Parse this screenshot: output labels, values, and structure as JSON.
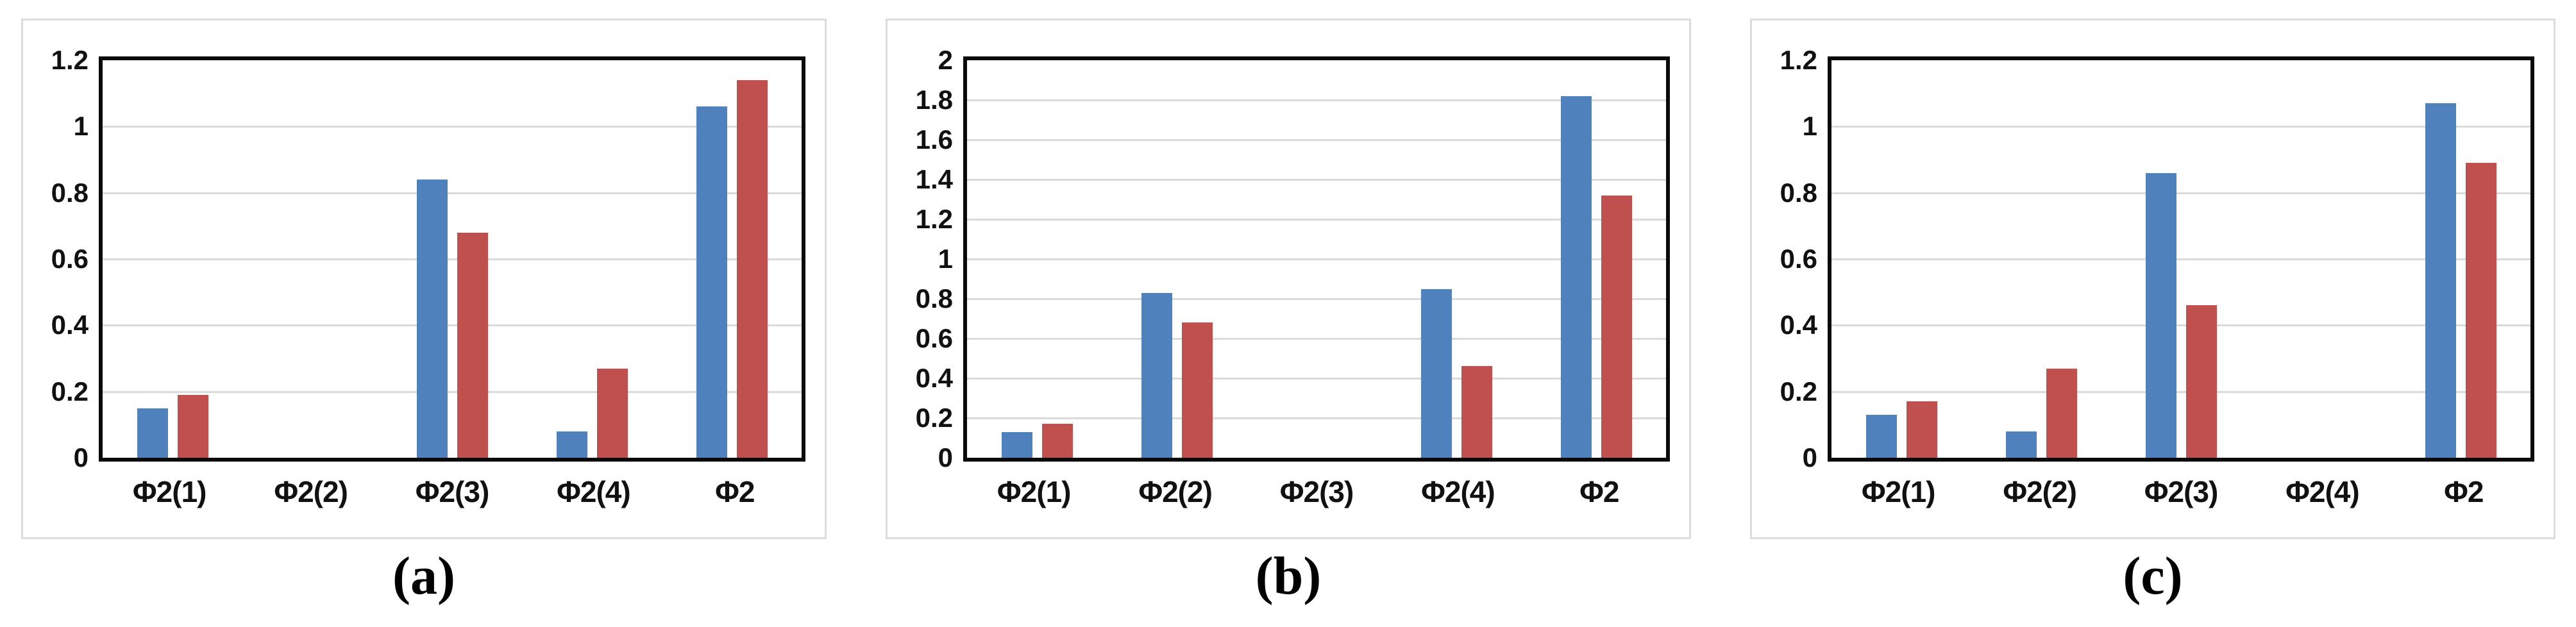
{
  "figure": {
    "background": "#ffffff",
    "panel_border_color": "#dcdcdc",
    "plot_border_color": "#0a0a0a",
    "grid_color": "#dadada",
    "text_color": "#111111"
  },
  "chart_data": [
    {
      "type": "bar",
      "caption": "(a)",
      "title": "",
      "xlabel": "",
      "ylabel": "",
      "categories": [
        "Φ2(1)",
        "Φ2(2)",
        "Φ2(3)",
        "Φ2(4)",
        "Φ2"
      ],
      "series": [
        {
          "name": "series-blue",
          "color": "#4F81BD",
          "values": [
            0.15,
            0,
            0.84,
            0.08,
            1.06
          ]
        },
        {
          "name": "series-red",
          "color": "#C0504D",
          "values": [
            0.19,
            0,
            0.68,
            0.27,
            1.14
          ]
        }
      ],
      "ylim": [
        0,
        1.2
      ],
      "yticks": [
        "0",
        "0.2",
        "0.4",
        "0.6",
        "0.8",
        "1",
        "1.2"
      ],
      "grid": true,
      "legend": "none"
    },
    {
      "type": "bar",
      "caption": "(b)",
      "title": "",
      "xlabel": "",
      "ylabel": "",
      "categories": [
        "Φ2(1)",
        "Φ2(2)",
        "Φ2(3)",
        "Φ2(4)",
        "Φ2"
      ],
      "series": [
        {
          "name": "series-blue",
          "color": "#4F81BD",
          "values": [
            0.13,
            0.83,
            0,
            0.85,
            1.82
          ]
        },
        {
          "name": "series-red",
          "color": "#C0504D",
          "values": [
            0.17,
            0.68,
            0,
            0.46,
            1.32
          ]
        }
      ],
      "ylim": [
        0,
        2
      ],
      "yticks": [
        "0",
        "0.2",
        "0.4",
        "0.6",
        "0.8",
        "1",
        "1.2",
        "1.4",
        "1.6",
        "1.8",
        "2"
      ],
      "grid": true,
      "legend": "none"
    },
    {
      "type": "bar",
      "caption": "(c)",
      "title": "",
      "xlabel": "",
      "ylabel": "",
      "categories": [
        "Φ2(1)",
        "Φ2(2)",
        "Φ2(3)",
        "Φ2(4)",
        "Φ2"
      ],
      "series": [
        {
          "name": "series-blue",
          "color": "#4F81BD",
          "values": [
            0.13,
            0.08,
            0.86,
            0,
            1.07
          ]
        },
        {
          "name": "series-red",
          "color": "#C0504D",
          "values": [
            0.17,
            0.27,
            0.46,
            0,
            0.89
          ]
        }
      ],
      "ylim": [
        0,
        1.2
      ],
      "yticks": [
        "0",
        "0.2",
        "0.4",
        "0.6",
        "0.8",
        "1",
        "1.2"
      ],
      "grid": true,
      "legend": "none"
    }
  ]
}
